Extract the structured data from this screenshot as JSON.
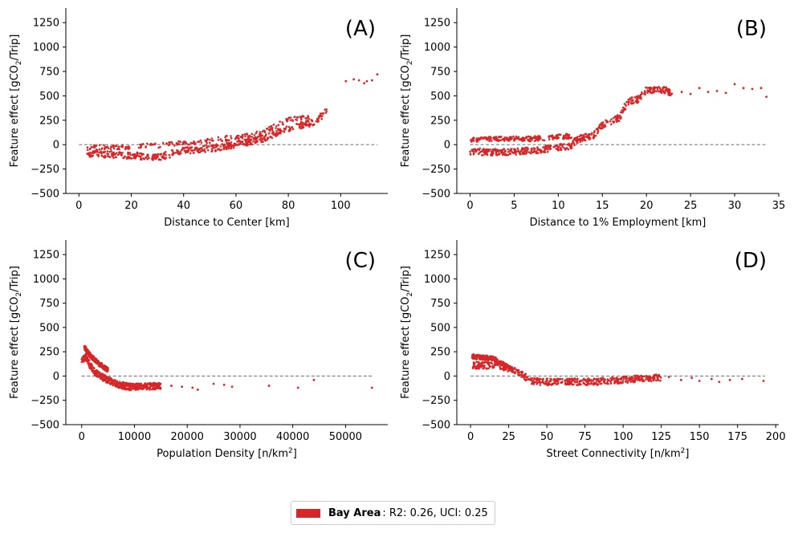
{
  "colors": {
    "points": "#d62728",
    "zero_line": "#808080",
    "axis": "#000000"
  },
  "chart_data": [
    {
      "type": "scatter",
      "panel": "(A)",
      "xlabel": "Distance to Center [km]",
      "ylabel_main": "Feature effect [gCO",
      "ylabel_sub": "2",
      "ylabel_tail": "/Trip]",
      "xlim": [
        -5,
        118
      ],
      "ylim": [
        -500,
        1400
      ],
      "xticks": [
        0,
        20,
        40,
        60,
        80,
        100
      ],
      "xtick_labels": [
        "0",
        "20",
        "40",
        "60",
        "80",
        "100"
      ],
      "yticks": [
        -500,
        -250,
        0,
        250,
        500,
        750,
        1000,
        1250
      ],
      "ytick_labels": [
        "−500",
        "−250",
        "0",
        "250",
        "500",
        "750",
        "1000",
        "1250"
      ],
      "zero_line_x": [
        0,
        114
      ],
      "trend": [
        [
          3,
          -90
        ],
        [
          20,
          -110
        ],
        [
          30,
          -130
        ],
        [
          40,
          -60
        ],
        [
          50,
          -40
        ],
        [
          60,
          0
        ],
        [
          70,
          60
        ],
        [
          80,
          170
        ],
        [
          90,
          230
        ],
        [
          95,
          350
        ]
      ],
      "trend_upper": [
        [
          3,
          -30
        ],
        [
          20,
          -20
        ],
        [
          30,
          -10
        ],
        [
          40,
          20
        ],
        [
          50,
          40
        ],
        [
          60,
          80
        ],
        [
          70,
          120
        ],
        [
          80,
          260
        ],
        [
          88,
          280
        ]
      ],
      "extra_points": [
        [
          102,
          650
        ],
        [
          105,
          670
        ],
        [
          107,
          660
        ],
        [
          109,
          630
        ],
        [
          110,
          650
        ],
        [
          112,
          660
        ],
        [
          114,
          720
        ]
      ]
    },
    {
      "type": "scatter",
      "panel": "(B)",
      "xlabel": "Distance to 1% Employment [km]",
      "ylabel_main": "Feature effect [gCO",
      "ylabel_sub": "2",
      "ylabel_tail": "/Trip]",
      "xlim": [
        -1.5,
        35
      ],
      "ylim": [
        -500,
        1400
      ],
      "xticks": [
        0,
        5,
        10,
        15,
        20,
        25,
        30,
        35
      ],
      "xtick_labels": [
        "0",
        "5",
        "10",
        "15",
        "20",
        "25",
        "30",
        "35"
      ],
      "yticks": [
        -500,
        -250,
        0,
        250,
        500,
        750,
        1000,
        1250
      ],
      "ytick_labels": [
        "−500",
        "−250",
        "0",
        "250",
        "500",
        "750",
        "1000",
        "1250"
      ],
      "zero_line_x": [
        0,
        33.5
      ],
      "trend": [
        [
          0,
          -70
        ],
        [
          4,
          -80
        ],
        [
          7,
          -60
        ],
        [
          10,
          -30
        ],
        [
          11.5,
          -20
        ],
        [
          12,
          50
        ],
        [
          14,
          100
        ],
        [
          15,
          200
        ],
        [
          17,
          280
        ],
        [
          17.5,
          380
        ],
        [
          18,
          450
        ],
        [
          19,
          460
        ],
        [
          20,
          560
        ],
        [
          22,
          560
        ],
        [
          23,
          530
        ]
      ],
      "trend_upper": [
        [
          0,
          50
        ],
        [
          4,
          60
        ],
        [
          7,
          60
        ],
        [
          10,
          80
        ],
        [
          11.5,
          90
        ]
      ],
      "extra_points": [
        [
          24,
          540
        ],
        [
          25,
          520
        ],
        [
          26,
          580
        ],
        [
          27,
          540
        ],
        [
          28,
          550
        ],
        [
          29,
          530
        ],
        [
          30,
          620
        ],
        [
          31,
          580
        ],
        [
          32,
          570
        ],
        [
          33,
          580
        ],
        [
          33.6,
          490
        ]
      ]
    },
    {
      "type": "scatter",
      "panel": "(C)",
      "xlabel_main": "Population Density [n/km",
      "xlabel_sup": "2",
      "xlabel_tail": "]",
      "ylabel_main": "Feature effect [gCO",
      "ylabel_sub": "2",
      "ylabel_tail": "/Trip]",
      "xlim": [
        -3000,
        58000
      ],
      "ylim": [
        -500,
        1400
      ],
      "xticks": [
        0,
        10000,
        20000,
        30000,
        40000,
        50000
      ],
      "xtick_labels": [
        "0",
        "10000",
        "20000",
        "30000",
        "40000",
        "50000"
      ],
      "yticks": [
        -500,
        -250,
        0,
        250,
        500,
        750,
        1000,
        1250
      ],
      "ytick_labels": [
        "−500",
        "−250",
        "0",
        "250",
        "500",
        "750",
        "1000",
        "1250"
      ],
      "zero_line_x": [
        0,
        55000
      ],
      "trend": [
        [
          0,
          160
        ],
        [
          800,
          200
        ],
        [
          1500,
          120
        ],
        [
          2500,
          40
        ],
        [
          3500,
          0
        ],
        [
          5000,
          -40
        ],
        [
          7000,
          -90
        ],
        [
          9000,
          -110
        ],
        [
          12000,
          -110
        ],
        [
          15000,
          -100
        ]
      ],
      "trend_upper": [
        [
          500,
          300
        ],
        [
          1500,
          220
        ],
        [
          3000,
          140
        ],
        [
          5000,
          60
        ]
      ],
      "extra_points": [
        [
          17000,
          -100
        ],
        [
          19000,
          -110
        ],
        [
          21000,
          -120
        ],
        [
          22000,
          -140
        ],
        [
          25000,
          -80
        ],
        [
          27000,
          -90
        ],
        [
          28500,
          -110
        ],
        [
          35500,
          -100
        ],
        [
          41000,
          -120
        ],
        [
          44000,
          -40
        ],
        [
          55000,
          -120
        ]
      ]
    },
    {
      "type": "scatter",
      "panel": "(D)",
      "xlabel_main": "Street Connectivity [n/km",
      "xlabel_sup": "2",
      "xlabel_tail": "]",
      "ylabel_main": "Feature effect [gCO",
      "ylabel_sub": "2",
      "ylabel_tail": "/Trip]",
      "xlim": [
        -9,
        202
      ],
      "ylim": [
        -500,
        1400
      ],
      "xticks": [
        0,
        25,
        50,
        75,
        100,
        125,
        150,
        175,
        200
      ],
      "xtick_labels": [
        "0",
        "25",
        "50",
        "75",
        "100",
        "125",
        "150",
        "175",
        "200"
      ],
      "yticks": [
        -500,
        -250,
        0,
        250,
        500,
        750,
        1000,
        1250
      ],
      "ytick_labels": [
        "−500",
        "−250",
        "0",
        "250",
        "500",
        "750",
        "1000",
        "1250"
      ],
      "zero_line_x": [
        0,
        193
      ],
      "trend": [
        [
          1,
          110
        ],
        [
          10,
          110
        ],
        [
          20,
          100
        ],
        [
          28,
          70
        ],
        [
          34,
          20
        ],
        [
          38,
          -40
        ],
        [
          45,
          -60
        ],
        [
          60,
          -60
        ],
        [
          80,
          -60
        ],
        [
          100,
          -40
        ],
        [
          115,
          -20
        ],
        [
          125,
          -15
        ]
      ],
      "trend_upper": [
        [
          1,
          200
        ],
        [
          15,
          180
        ],
        [
          28,
          60
        ]
      ],
      "extra_points": [
        [
          130,
          -10
        ],
        [
          138,
          -40
        ],
        [
          145,
          -20
        ],
        [
          150,
          -50
        ],
        [
          158,
          -30
        ],
        [
          163,
          -60
        ],
        [
          170,
          -40
        ],
        [
          178,
          -30
        ],
        [
          192,
          -50
        ]
      ]
    }
  ],
  "legend": {
    "name": "Bay Area",
    "stats": ": R2: 0.26, UCI: 0.25"
  }
}
